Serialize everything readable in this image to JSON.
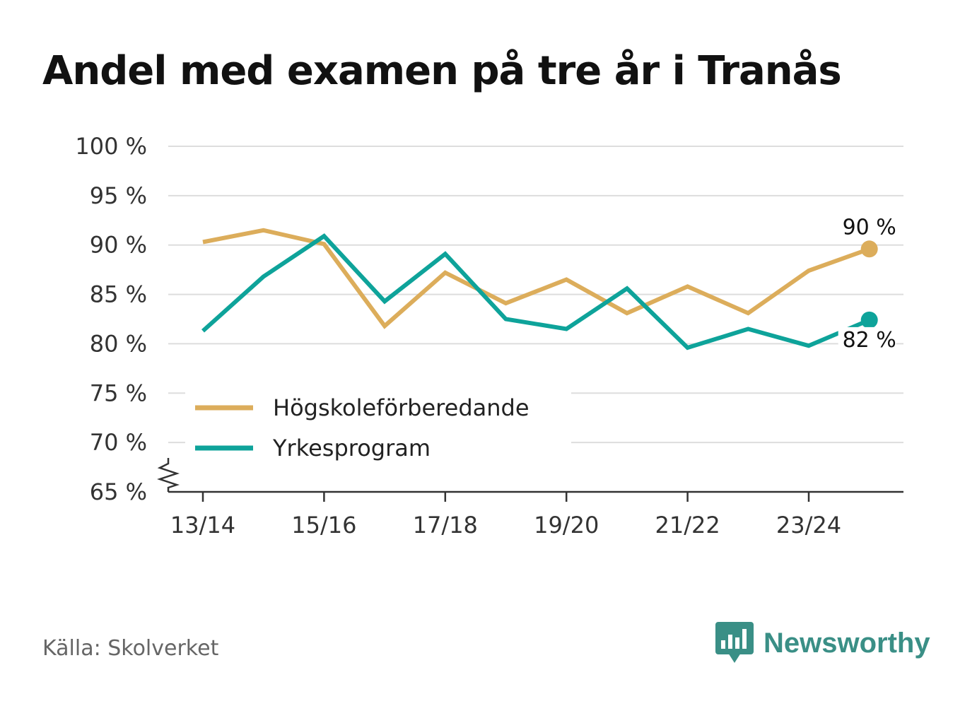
{
  "title": "Andel med examen på tre år i Tranås",
  "source": "Källa: Skolverket",
  "brand": "Newsworthy",
  "chart_data": {
    "type": "line",
    "title": "Andel med examen på tre år i Tranås",
    "xlabel": "",
    "ylabel": "",
    "categories": [
      "13/14",
      "14/15",
      "15/16",
      "16/17",
      "17/18",
      "18/19",
      "19/20",
      "20/21",
      "21/22",
      "22/23",
      "23/24",
      "24/25"
    ],
    "tick_labels": [
      "13/14",
      "15/16",
      "17/18",
      "19/20",
      "21/22",
      "23/24"
    ],
    "y_ticks": [
      "65 %",
      "70 %",
      "75 %",
      "80 %",
      "85 %",
      "90 %",
      "95 %",
      "100 %"
    ],
    "ylim": [
      65,
      100
    ],
    "grid": true,
    "legend_position": "bottom-left",
    "series": [
      {
        "name": "Högskoleförberedande",
        "color": "#dcad5b",
        "values": [
          90.3,
          91.5,
          90.1,
          81.8,
          87.2,
          84.1,
          86.5,
          83.1,
          85.8,
          83.1,
          87.4,
          89.6
        ],
        "end_label": "90 %"
      },
      {
        "name": "Yrkesprogram",
        "color": "#0ea39a",
        "values": [
          81.3,
          86.8,
          90.9,
          84.3,
          89.1,
          82.5,
          81.5,
          85.6,
          79.6,
          81.5,
          79.8,
          82.4
        ],
        "end_label": "82 %"
      }
    ]
  },
  "colors": {
    "grid": "#dddddd",
    "axis": "#333333",
    "text": "#333333"
  }
}
